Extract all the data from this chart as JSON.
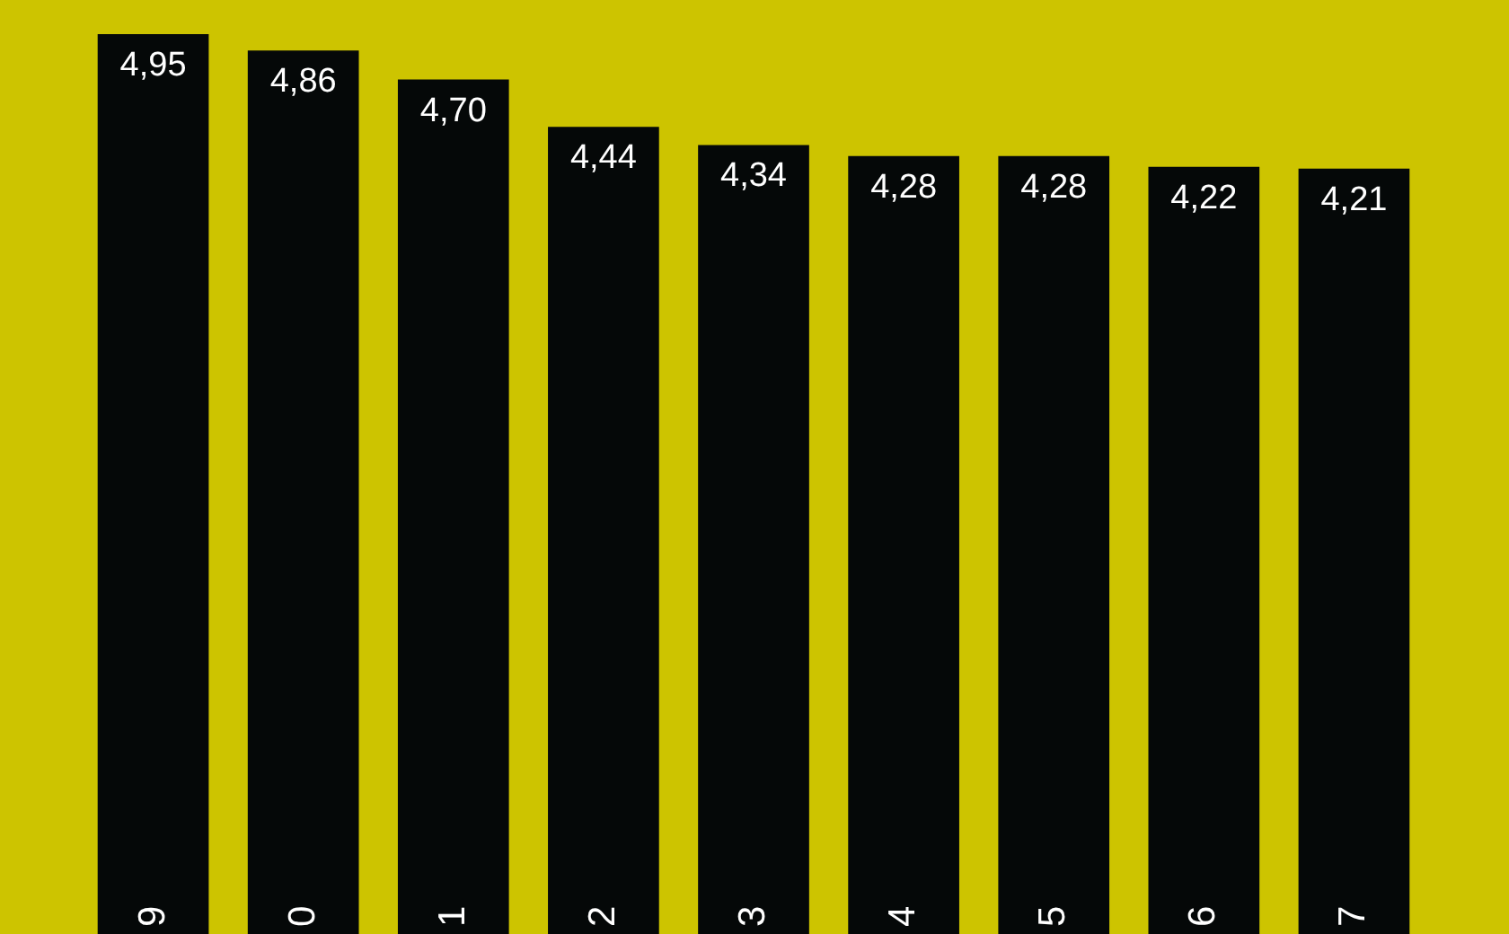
{
  "chart_data": {
    "type": "bar",
    "categories": [
      "9",
      "0",
      "1",
      "2",
      "3",
      "4",
      "5",
      "6",
      "7"
    ],
    "values": [
      4.95,
      4.86,
      4.7,
      4.44,
      4.34,
      4.28,
      4.28,
      4.22,
      4.21
    ],
    "value_labels": [
      "4,95",
      "4,86",
      "4,70",
      "4,44",
      "4,34",
      "4,28",
      "4,28",
      "4,22",
      "4,21"
    ],
    "color": "#050808"
  }
}
